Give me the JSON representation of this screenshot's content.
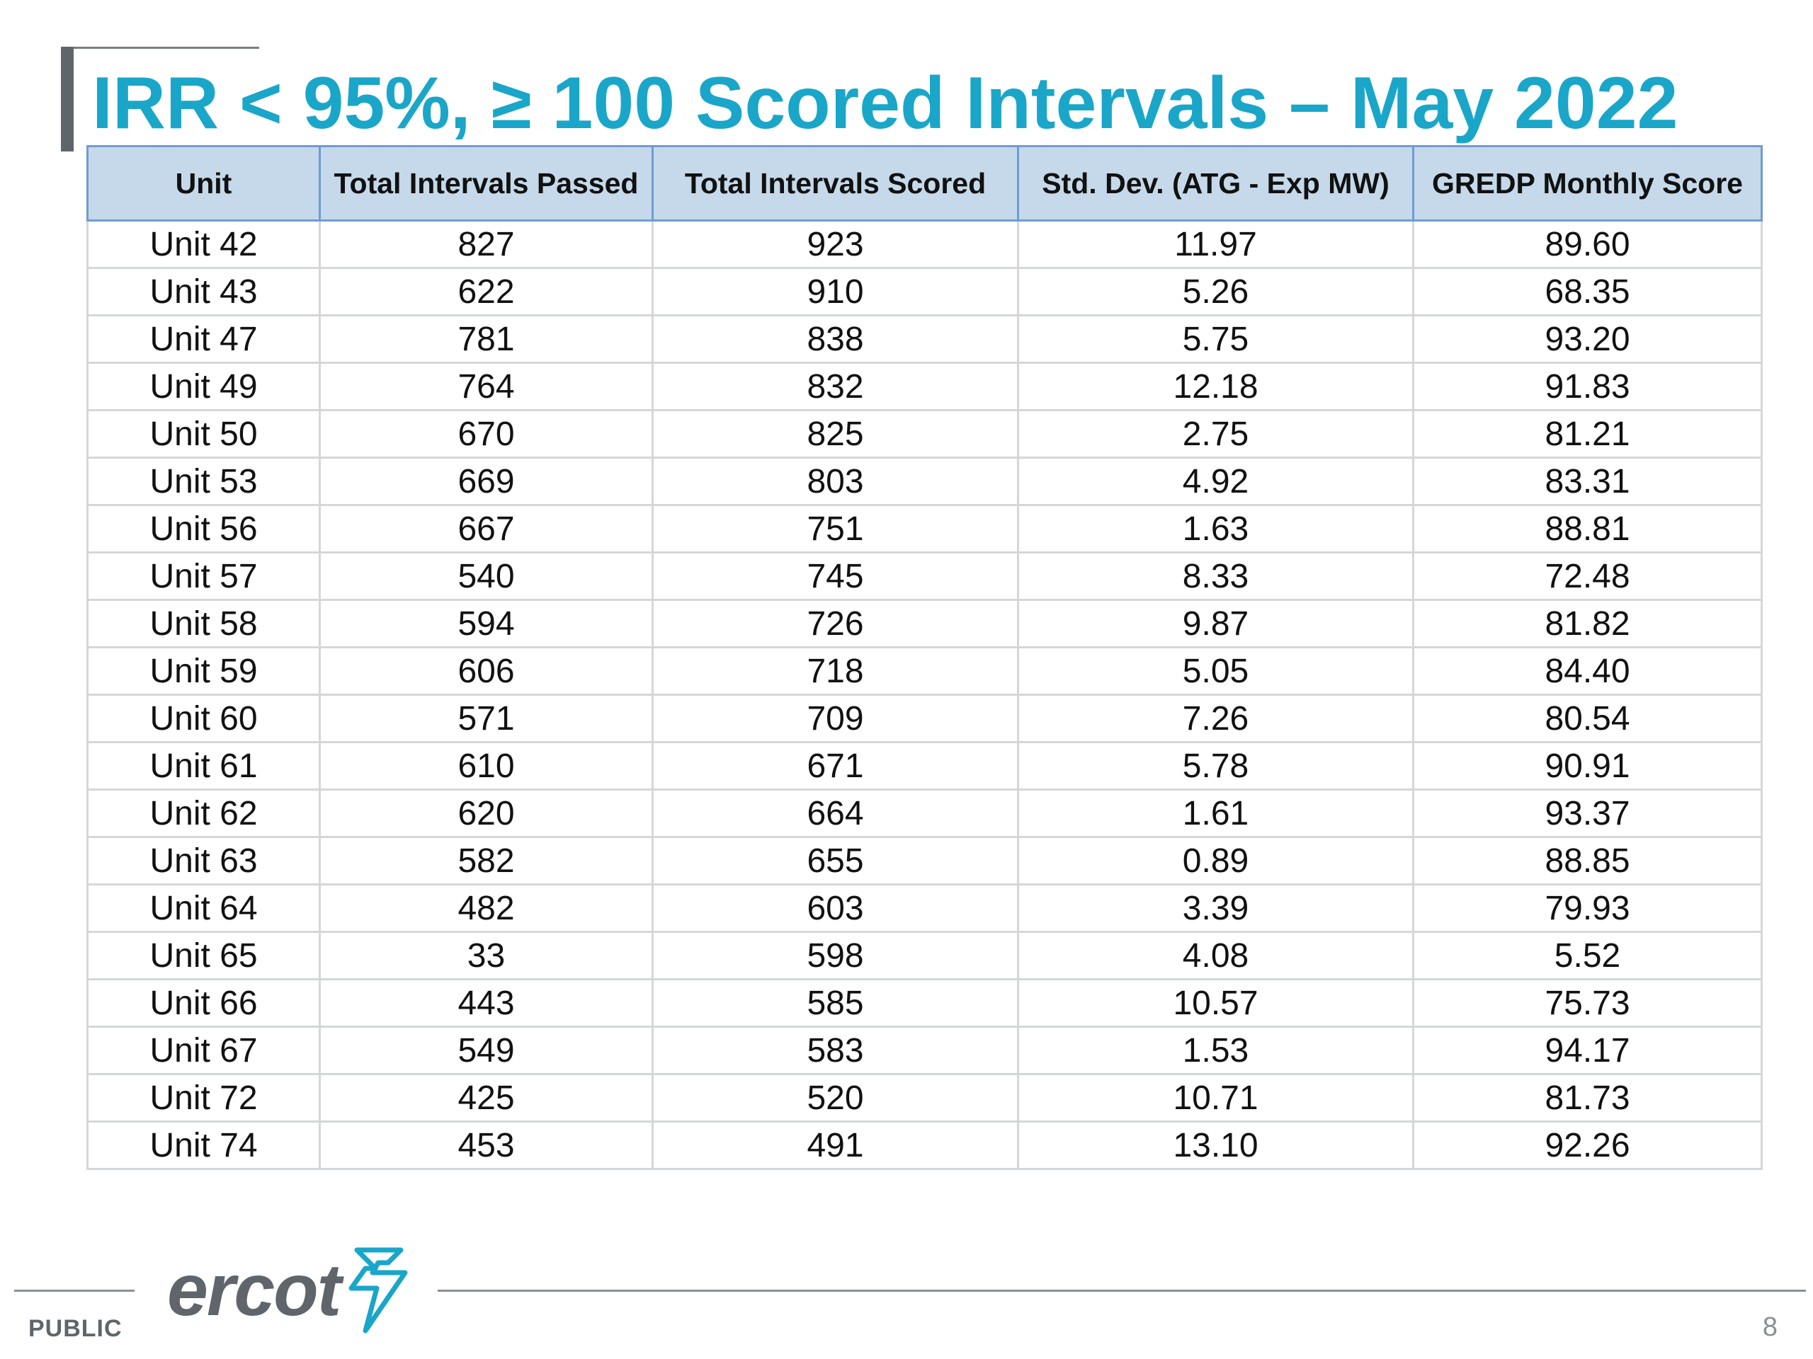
{
  "slide": {
    "title": "IRR < 95%, ≥ 100 Scored Intervals – May 2022",
    "page_number": "8",
    "classification": "PUBLIC",
    "logo_text": "ercot"
  },
  "table": {
    "headers": [
      "Unit",
      "Total Intervals Passed",
      "Total Intervals Scored",
      "Std. Dev. (ATG - Exp MW)",
      "GREDP Monthly Score"
    ],
    "rows": [
      [
        "Unit 42",
        "827",
        "923",
        "11.97",
        "89.60"
      ],
      [
        "Unit 43",
        "622",
        "910",
        "5.26",
        "68.35"
      ],
      [
        "Unit 47",
        "781",
        "838",
        "5.75",
        "93.20"
      ],
      [
        "Unit 49",
        "764",
        "832",
        "12.18",
        "91.83"
      ],
      [
        "Unit 50",
        "670",
        "825",
        "2.75",
        "81.21"
      ],
      [
        "Unit 53",
        "669",
        "803",
        "4.92",
        "83.31"
      ],
      [
        "Unit 56",
        "667",
        "751",
        "1.63",
        "88.81"
      ],
      [
        "Unit 57",
        "540",
        "745",
        "8.33",
        "72.48"
      ],
      [
        "Unit 58",
        "594",
        "726",
        "9.87",
        "81.82"
      ],
      [
        "Unit 59",
        "606",
        "718",
        "5.05",
        "84.40"
      ],
      [
        "Unit 60",
        "571",
        "709",
        "7.26",
        "80.54"
      ],
      [
        "Unit 61",
        "610",
        "671",
        "5.78",
        "90.91"
      ],
      [
        "Unit 62",
        "620",
        "664",
        "1.61",
        "93.37"
      ],
      [
        "Unit 63",
        "582",
        "655",
        "0.89",
        "88.85"
      ],
      [
        "Unit 64",
        "482",
        "603",
        "3.39",
        "79.93"
      ],
      [
        "Unit 65",
        "33",
        "598",
        "4.08",
        "5.52"
      ],
      [
        "Unit 66",
        "443",
        "585",
        "10.57",
        "75.73"
      ],
      [
        "Unit 67",
        "549",
        "583",
        "1.53",
        "94.17"
      ],
      [
        "Unit 72",
        "425",
        "520",
        "10.71",
        "81.73"
      ],
      [
        "Unit 74",
        "453",
        "491",
        "13.10",
        "92.26"
      ]
    ]
  },
  "colors": {
    "title": "#1aa6c8",
    "header_fill": "#c5d9ea",
    "header_border": "#6f9ccf",
    "grid": "#d4d7da",
    "footer_gray": "#5f656b",
    "logo_accent": "#1aa6c8"
  },
  "icons": {
    "logo_mark": "lightning-bolt-icon"
  }
}
